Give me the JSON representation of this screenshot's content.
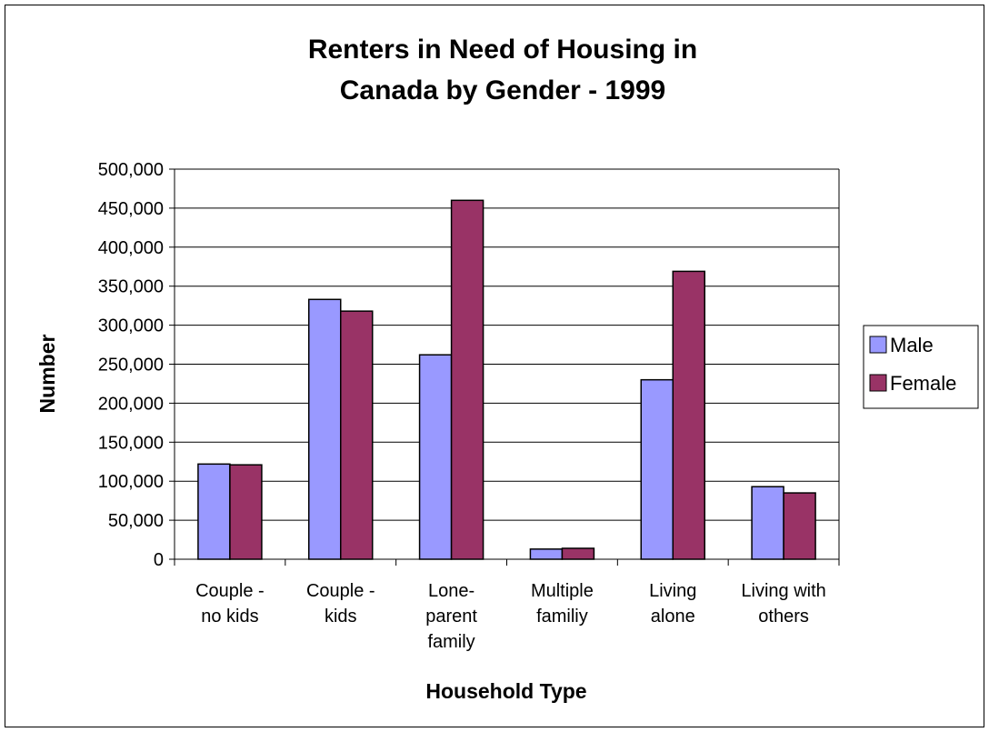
{
  "chart_data": {
    "type": "bar",
    "title_lines": [
      "Renters in Need of Housing in",
      "Canada by Gender - 1999"
    ],
    "xlabel": "Household Type",
    "ylabel": "Number",
    "categories": [
      [
        "Couple -",
        "no kids"
      ],
      [
        "Couple -",
        "kids"
      ],
      [
        "Lone-",
        "parent",
        "family"
      ],
      [
        "Multiple",
        "familiy"
      ],
      [
        "Living",
        "alone"
      ],
      [
        "Living with",
        "others"
      ]
    ],
    "series": [
      {
        "name": "Male",
        "color": "#9999FF",
        "values": [
          122000,
          333000,
          262000,
          13000,
          230000,
          93000
        ]
      },
      {
        "name": "Female",
        "color": "#993366",
        "values": [
          121000,
          318000,
          460000,
          14000,
          369000,
          85000
        ]
      }
    ],
    "ylim": [
      0,
      500000
    ],
    "yticks": [
      "0",
      "50,000",
      "100,000",
      "150,000",
      "200,000",
      "250,000",
      "300,000",
      "350,000",
      "400,000",
      "450,000",
      "500,000"
    ],
    "ytick_step": 50000,
    "grid": true,
    "legend_position": "right"
  }
}
